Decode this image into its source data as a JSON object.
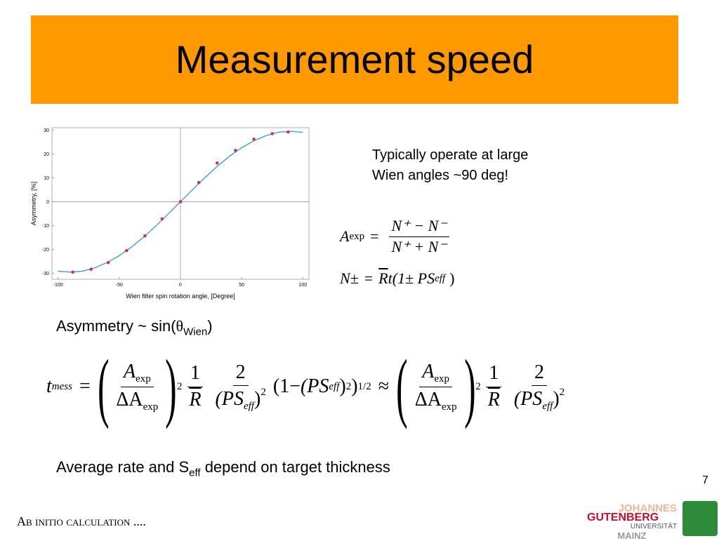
{
  "title": "Measurement speed",
  "note": [
    "Typically operate at large",
    "Wien angles ~90 deg!"
  ],
  "chart_data": {
    "type": "scatter",
    "xlabel": "Wien filter spin rotation angle, [Degree]",
    "ylabel": "Asymmetry, [%]",
    "xlim": [
      -105,
      105
    ],
    "ylim": [
      -32.5,
      31
    ],
    "xticks": [
      -100,
      -50,
      0,
      50,
      100
    ],
    "yticks": [
      -30,
      -20,
      -10,
      0,
      10,
      20,
      30
    ],
    "points": {
      "color": "#cc3355",
      "x": [
        -88,
        -73,
        -59,
        -44,
        -29,
        -15,
        0,
        15,
        30,
        45,
        60,
        75,
        88
      ],
      "values": [
        -29.5,
        -28.3,
        -25.5,
        -20.5,
        -14.3,
        -7.2,
        0,
        8,
        16.2,
        21.5,
        26.2,
        28.5,
        29.2
      ]
    },
    "fit": {
      "color": "#3399dd",
      "x": [
        -100,
        -90,
        -80,
        -70,
        -60,
        -50,
        -40,
        -30,
        -20,
        -10,
        0,
        10,
        20,
        30,
        40,
        50,
        60,
        70,
        80,
        90,
        100
      ],
      "values": [
        -29.1,
        -29.5,
        -29.1,
        -27.7,
        -25.5,
        -22.6,
        -19.0,
        -14.8,
        -10.1,
        -5.1,
        0,
        5.1,
        10.1,
        14.8,
        19.0,
        22.6,
        25.5,
        27.7,
        29.1,
        29.5,
        29.1
      ]
    }
  },
  "eq_asym": {
    "lhs": "A",
    "lhs_sub": "exp",
    "rel": "=",
    "numerator": "N⁺ − N⁻",
    "denominator": "N⁺ + N⁻"
  },
  "eq_rate": {
    "lhs": "N±",
    "rel": "=",
    "r": "R",
    "rhs": "t(1± PS",
    "rhs_sub": "eff",
    "close": ")"
  },
  "sin_line": {
    "text": "Asymmetry ~ sin(",
    "theta": "θ",
    "sub": "Wien",
    "close": ")"
  },
  "eq_time": {
    "lhs": "t",
    "lhs_sub": "mess",
    "rel": "=",
    "num": "A",
    "num_sub": "exp",
    "den": "ΔA",
    "den_sub": "exp",
    "power": "2",
    "one": "1",
    "r": "R",
    "two": "2",
    "ps": "(PS",
    "ps_sub": "eff",
    "ps_close": ")",
    "open": "(1−",
    "close": ")",
    "root": "1/2",
    "approx": "≈"
  },
  "bottom": {
    "text": "Average rate and S",
    "sub": "eff",
    "rest": " depend on target thickness"
  },
  "page_number": "7",
  "footer": "Ab initio calculation ....",
  "logo": [
    "JOHANNES",
    "GUTENBERG",
    "UNIVERSITÄT",
    "MAINZ"
  ]
}
